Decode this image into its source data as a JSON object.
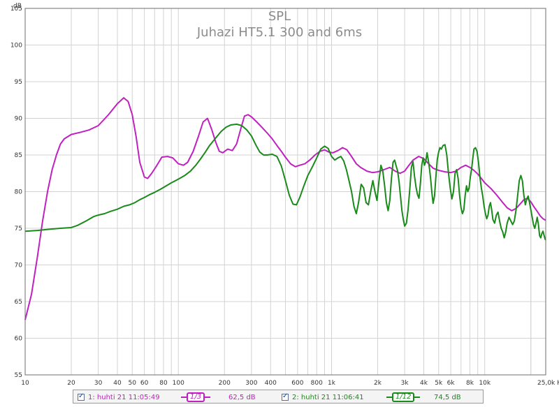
{
  "chart_data": {
    "type": "line",
    "title": "SPL",
    "subtitle": "Juhazi HT5.1 300 and 6ms",
    "ylabel": "dB",
    "xlabel": "",
    "x_scale": "log",
    "xlim": [
      10,
      25000
    ],
    "ylim": [
      55,
      105
    ],
    "grid": true,
    "x_tick_values": [
      10,
      20,
      30,
      40,
      50,
      60,
      80,
      100,
      200,
      300,
      400,
      600,
      800,
      1000,
      2000,
      3000,
      4000,
      5000,
      6000,
      8000,
      10000,
      25000
    ],
    "x_tick_labels": [
      "10",
      "20",
      "30",
      "40",
      "50",
      "60",
      "80",
      "100",
      "200",
      "300",
      "400",
      "600",
      "800",
      "1k",
      "2k",
      "3k",
      "4k",
      "5k",
      "6k",
      "8k",
      "10k",
      "25,0k Hz"
    ],
    "y_tick_values": [
      55,
      60,
      65,
      70,
      75,
      80,
      85,
      90,
      95,
      100,
      105
    ],
    "y_tick_labels": [
      "55",
      "60",
      "65",
      "70",
      "75",
      "80",
      "85",
      "90",
      "95",
      "100",
      "105"
    ],
    "series": [
      {
        "name": "1: huhti 21 11:05:49",
        "color": "#c020c0",
        "points": [
          [
            10,
            62.5
          ],
          [
            11,
            66
          ],
          [
            12,
            71
          ],
          [
            13,
            76
          ],
          [
            14,
            80
          ],
          [
            15,
            83
          ],
          [
            16,
            85
          ],
          [
            17,
            86.5
          ],
          [
            18,
            87.2
          ],
          [
            20,
            87.8
          ],
          [
            23,
            88.1
          ],
          [
            26,
            88.4
          ],
          [
            30,
            89
          ],
          [
            35,
            90.5
          ],
          [
            40,
            92
          ],
          [
            44,
            92.8
          ],
          [
            47,
            92.3
          ],
          [
            50,
            90.5
          ],
          [
            53,
            87.5
          ],
          [
            56,
            84
          ],
          [
            60,
            82
          ],
          [
            63,
            81.8
          ],
          [
            67,
            82.5
          ],
          [
            72,
            83.5
          ],
          [
            78,
            84.7
          ],
          [
            85,
            84.8
          ],
          [
            92,
            84.6
          ],
          [
            100,
            83.8
          ],
          [
            108,
            83.6
          ],
          [
            115,
            84
          ],
          [
            125,
            85.5
          ],
          [
            135,
            87.5
          ],
          [
            145,
            89.5
          ],
          [
            155,
            90
          ],
          [
            165,
            88.5
          ],
          [
            175,
            86.8
          ],
          [
            185,
            85.5
          ],
          [
            195,
            85.3
          ],
          [
            210,
            85.8
          ],
          [
            225,
            85.6
          ],
          [
            240,
            86.5
          ],
          [
            255,
            88.5
          ],
          [
            270,
            90.3
          ],
          [
            285,
            90.5
          ],
          [
            300,
            90.2
          ],
          [
            325,
            89.5
          ],
          [
            350,
            88.8
          ],
          [
            380,
            88
          ],
          [
            410,
            87.2
          ],
          [
            440,
            86.3
          ],
          [
            470,
            85.5
          ],
          [
            500,
            84.7
          ],
          [
            540,
            83.8
          ],
          [
            580,
            83.4
          ],
          [
            620,
            83.6
          ],
          [
            670,
            83.8
          ],
          [
            720,
            84.3
          ],
          [
            780,
            85
          ],
          [
            840,
            85.5
          ],
          [
            900,
            85.7
          ],
          [
            960,
            85.4
          ],
          [
            1020,
            85.3
          ],
          [
            1100,
            85.6
          ],
          [
            1180,
            86
          ],
          [
            1260,
            85.7
          ],
          [
            1350,
            84.8
          ],
          [
            1450,
            83.8
          ],
          [
            1550,
            83.3
          ],
          [
            1700,
            82.8
          ],
          [
            1850,
            82.6
          ],
          [
            2000,
            82.7
          ],
          [
            2200,
            83
          ],
          [
            2400,
            83.3
          ],
          [
            2600,
            82.8
          ],
          [
            2800,
            82.5
          ],
          [
            3000,
            82.8
          ],
          [
            3200,
            83.6
          ],
          [
            3400,
            84.3
          ],
          [
            3700,
            84.8
          ],
          [
            4000,
            84.5
          ],
          [
            4300,
            83.8
          ],
          [
            4600,
            83.2
          ],
          [
            5000,
            82.9
          ],
          [
            5500,
            82.7
          ],
          [
            6000,
            82.6
          ],
          [
            6500,
            82.8
          ],
          [
            7000,
            83.3
          ],
          [
            7500,
            83.6
          ],
          [
            8000,
            83.3
          ],
          [
            8500,
            82.9
          ],
          [
            9000,
            82.4
          ],
          [
            9500,
            81.8
          ],
          [
            10000,
            81.2
          ],
          [
            11000,
            80.4
          ],
          [
            12000,
            79.5
          ],
          [
            13000,
            78.6
          ],
          [
            14000,
            77.8
          ],
          [
            15000,
            77.4
          ],
          [
            16000,
            77.7
          ],
          [
            17000,
            78.3
          ],
          [
            18000,
            78.9
          ],
          [
            19000,
            79.1
          ],
          [
            20000,
            78.6
          ],
          [
            21000,
            77.9
          ],
          [
            22000,
            77.3
          ],
          [
            23000,
            76.7
          ],
          [
            24000,
            76.3
          ],
          [
            25000,
            76.1
          ]
        ]
      },
      {
        "name": "2: huhti 21 11:06:41",
        "color": "#1a8a1a",
        "points": [
          [
            10,
            74.6
          ],
          [
            12,
            74.7
          ],
          [
            15,
            74.9
          ],
          [
            17,
            75
          ],
          [
            20,
            75.1
          ],
          [
            22,
            75.4
          ],
          [
            25,
            76
          ],
          [
            28,
            76.6
          ],
          [
            30,
            76.8
          ],
          [
            33,
            77
          ],
          [
            36,
            77.3
          ],
          [
            40,
            77.6
          ],
          [
            44,
            78
          ],
          [
            48,
            78.2
          ],
          [
            52,
            78.5
          ],
          [
            56,
            78.9
          ],
          [
            60,
            79.2
          ],
          [
            65,
            79.6
          ],
          [
            70,
            79.9
          ],
          [
            76,
            80.3
          ],
          [
            82,
            80.7
          ],
          [
            90,
            81.2
          ],
          [
            100,
            81.7
          ],
          [
            110,
            82.2
          ],
          [
            120,
            82.8
          ],
          [
            130,
            83.6
          ],
          [
            140,
            84.5
          ],
          [
            150,
            85.4
          ],
          [
            160,
            86.3
          ],
          [
            175,
            87.3
          ],
          [
            190,
            88.2
          ],
          [
            205,
            88.8
          ],
          [
            220,
            89.1
          ],
          [
            240,
            89.2
          ],
          [
            260,
            89
          ],
          [
            280,
            88.4
          ],
          [
            300,
            87.6
          ],
          [
            320,
            86.4
          ],
          [
            340,
            85.4
          ],
          [
            360,
            85
          ],
          [
            380,
            85
          ],
          [
            410,
            85.1
          ],
          [
            440,
            84.8
          ],
          [
            470,
            83.5
          ],
          [
            500,
            81.5
          ],
          [
            530,
            79.5
          ],
          [
            560,
            78.3
          ],
          [
            590,
            78.2
          ],
          [
            620,
            79.2
          ],
          [
            660,
            80.8
          ],
          [
            700,
            82.2
          ],
          [
            750,
            83.4
          ],
          [
            800,
            84.6
          ],
          [
            850,
            85.8
          ],
          [
            900,
            86.2
          ],
          [
            950,
            85.9
          ],
          [
            1000,
            84.8
          ],
          [
            1050,
            84.3
          ],
          [
            1100,
            84.6
          ],
          [
            1150,
            84.8
          ],
          [
            1200,
            84.2
          ],
          [
            1250,
            83
          ],
          [
            1300,
            81.5
          ],
          [
            1350,
            80
          ],
          [
            1400,
            78
          ],
          [
            1450,
            77
          ],
          [
            1500,
            78.5
          ],
          [
            1560,
            81
          ],
          [
            1620,
            80.5
          ],
          [
            1680,
            78.5
          ],
          [
            1740,
            78.2
          ],
          [
            1800,
            80
          ],
          [
            1860,
            81.5
          ],
          [
            1920,
            80
          ],
          [
            1980,
            78.8
          ],
          [
            2040,
            81.5
          ],
          [
            2100,
            83.6
          ],
          [
            2160,
            82.8
          ],
          [
            2220,
            80.8
          ],
          [
            2280,
            78.5
          ],
          [
            2340,
            77.4
          ],
          [
            2400,
            78.8
          ],
          [
            2460,
            81.8
          ],
          [
            2520,
            84
          ],
          [
            2580,
            84.3
          ],
          [
            2640,
            83.5
          ],
          [
            2700,
            82.8
          ],
          [
            2760,
            81.3
          ],
          [
            2820,
            79.3
          ],
          [
            2880,
            77.4
          ],
          [
            2940,
            76.2
          ],
          [
            3000,
            75.3
          ],
          [
            3080,
            75.7
          ],
          [
            3160,
            77.6
          ],
          [
            3240,
            80.3
          ],
          [
            3320,
            83.3
          ],
          [
            3400,
            84.1
          ],
          [
            3480,
            82.1
          ],
          [
            3560,
            80.6
          ],
          [
            3640,
            79.6
          ],
          [
            3720,
            79.1
          ],
          [
            3800,
            81.1
          ],
          [
            3880,
            83.6
          ],
          [
            3960,
            84.6
          ],
          [
            4040,
            83.6
          ],
          [
            4120,
            84.1
          ],
          [
            4200,
            85.3
          ],
          [
            4280,
            84.3
          ],
          [
            4360,
            83.1
          ],
          [
            4440,
            81.6
          ],
          [
            4520,
            79.8
          ],
          [
            4600,
            78.4
          ],
          [
            4700,
            79.4
          ],
          [
            4800,
            82.1
          ],
          [
            4900,
            84.4
          ],
          [
            5000,
            85.4
          ],
          [
            5100,
            86
          ],
          [
            5200,
            85.8
          ],
          [
            5350,
            86.3
          ],
          [
            5500,
            86.4
          ],
          [
            5650,
            85
          ],
          [
            5800,
            82.5
          ],
          [
            5950,
            80.5
          ],
          [
            6100,
            79
          ],
          [
            6250,
            80
          ],
          [
            6400,
            82.5
          ],
          [
            6550,
            83
          ],
          [
            6700,
            81.8
          ],
          [
            6850,
            79.5
          ],
          [
            7000,
            77.8
          ],
          [
            7150,
            77
          ],
          [
            7300,
            77.5
          ],
          [
            7450,
            79.5
          ],
          [
            7600,
            80.8
          ],
          [
            7750,
            80
          ],
          [
            7900,
            80.5
          ],
          [
            8050,
            82
          ],
          [
            8200,
            83
          ],
          [
            8350,
            84.5
          ],
          [
            8500,
            85.8
          ],
          [
            8700,
            86
          ],
          [
            8900,
            85.5
          ],
          [
            9100,
            84
          ],
          [
            9300,
            82
          ],
          [
            9500,
            80.5
          ],
          [
            9700,
            79.4
          ],
          [
            9900,
            78
          ],
          [
            10100,
            77
          ],
          [
            10300,
            76.3
          ],
          [
            10500,
            76.8
          ],
          [
            10700,
            78
          ],
          [
            10900,
            78.5
          ],
          [
            11100,
            77.5
          ],
          [
            11300,
            76.2
          ],
          [
            11600,
            75.7
          ],
          [
            11900,
            76.8
          ],
          [
            12200,
            77.2
          ],
          [
            12500,
            76
          ],
          [
            12800,
            75
          ],
          [
            13100,
            74.5
          ],
          [
            13400,
            73.7
          ],
          [
            13700,
            74.5
          ],
          [
            14000,
            75.7
          ],
          [
            14400,
            76.5
          ],
          [
            14800,
            76
          ],
          [
            15200,
            75.5
          ],
          [
            15600,
            76
          ],
          [
            16000,
            77.5
          ],
          [
            16400,
            79.5
          ],
          [
            16800,
            81.5
          ],
          [
            17200,
            82.2
          ],
          [
            17600,
            81.5
          ],
          [
            18000,
            79.5
          ],
          [
            18400,
            78.2
          ],
          [
            18800,
            79
          ],
          [
            19200,
            79.4
          ],
          [
            19600,
            78.5
          ],
          [
            20000,
            77.5
          ],
          [
            20400,
            76.5
          ],
          [
            20800,
            75.5
          ],
          [
            21200,
            75
          ],
          [
            21600,
            75.7
          ],
          [
            22000,
            76.5
          ],
          [
            22400,
            75.5
          ],
          [
            22800,
            74
          ],
          [
            23200,
            73.7
          ],
          [
            23600,
            74.3
          ],
          [
            24000,
            74.6
          ],
          [
            24400,
            74
          ],
          [
            24800,
            73.5
          ],
          [
            25000,
            73.4
          ]
        ]
      }
    ],
    "legend": [
      {
        "label": "1: huhti 21 11:05:49",
        "smoothing": "1/3",
        "value": "62,5 dB",
        "color": "#c020c0"
      },
      {
        "label": "2: huhti 21 11:06:41",
        "smoothing": "1/12",
        "value": "74,5 dB",
        "color": "#1a8a1a"
      }
    ],
    "legend_position": "bottom"
  },
  "ui": {
    "background": "#ffffff",
    "axis_color": "#444444",
    "grid_color": "#d3d3d3",
    "title_color": "#8c8c8c"
  }
}
